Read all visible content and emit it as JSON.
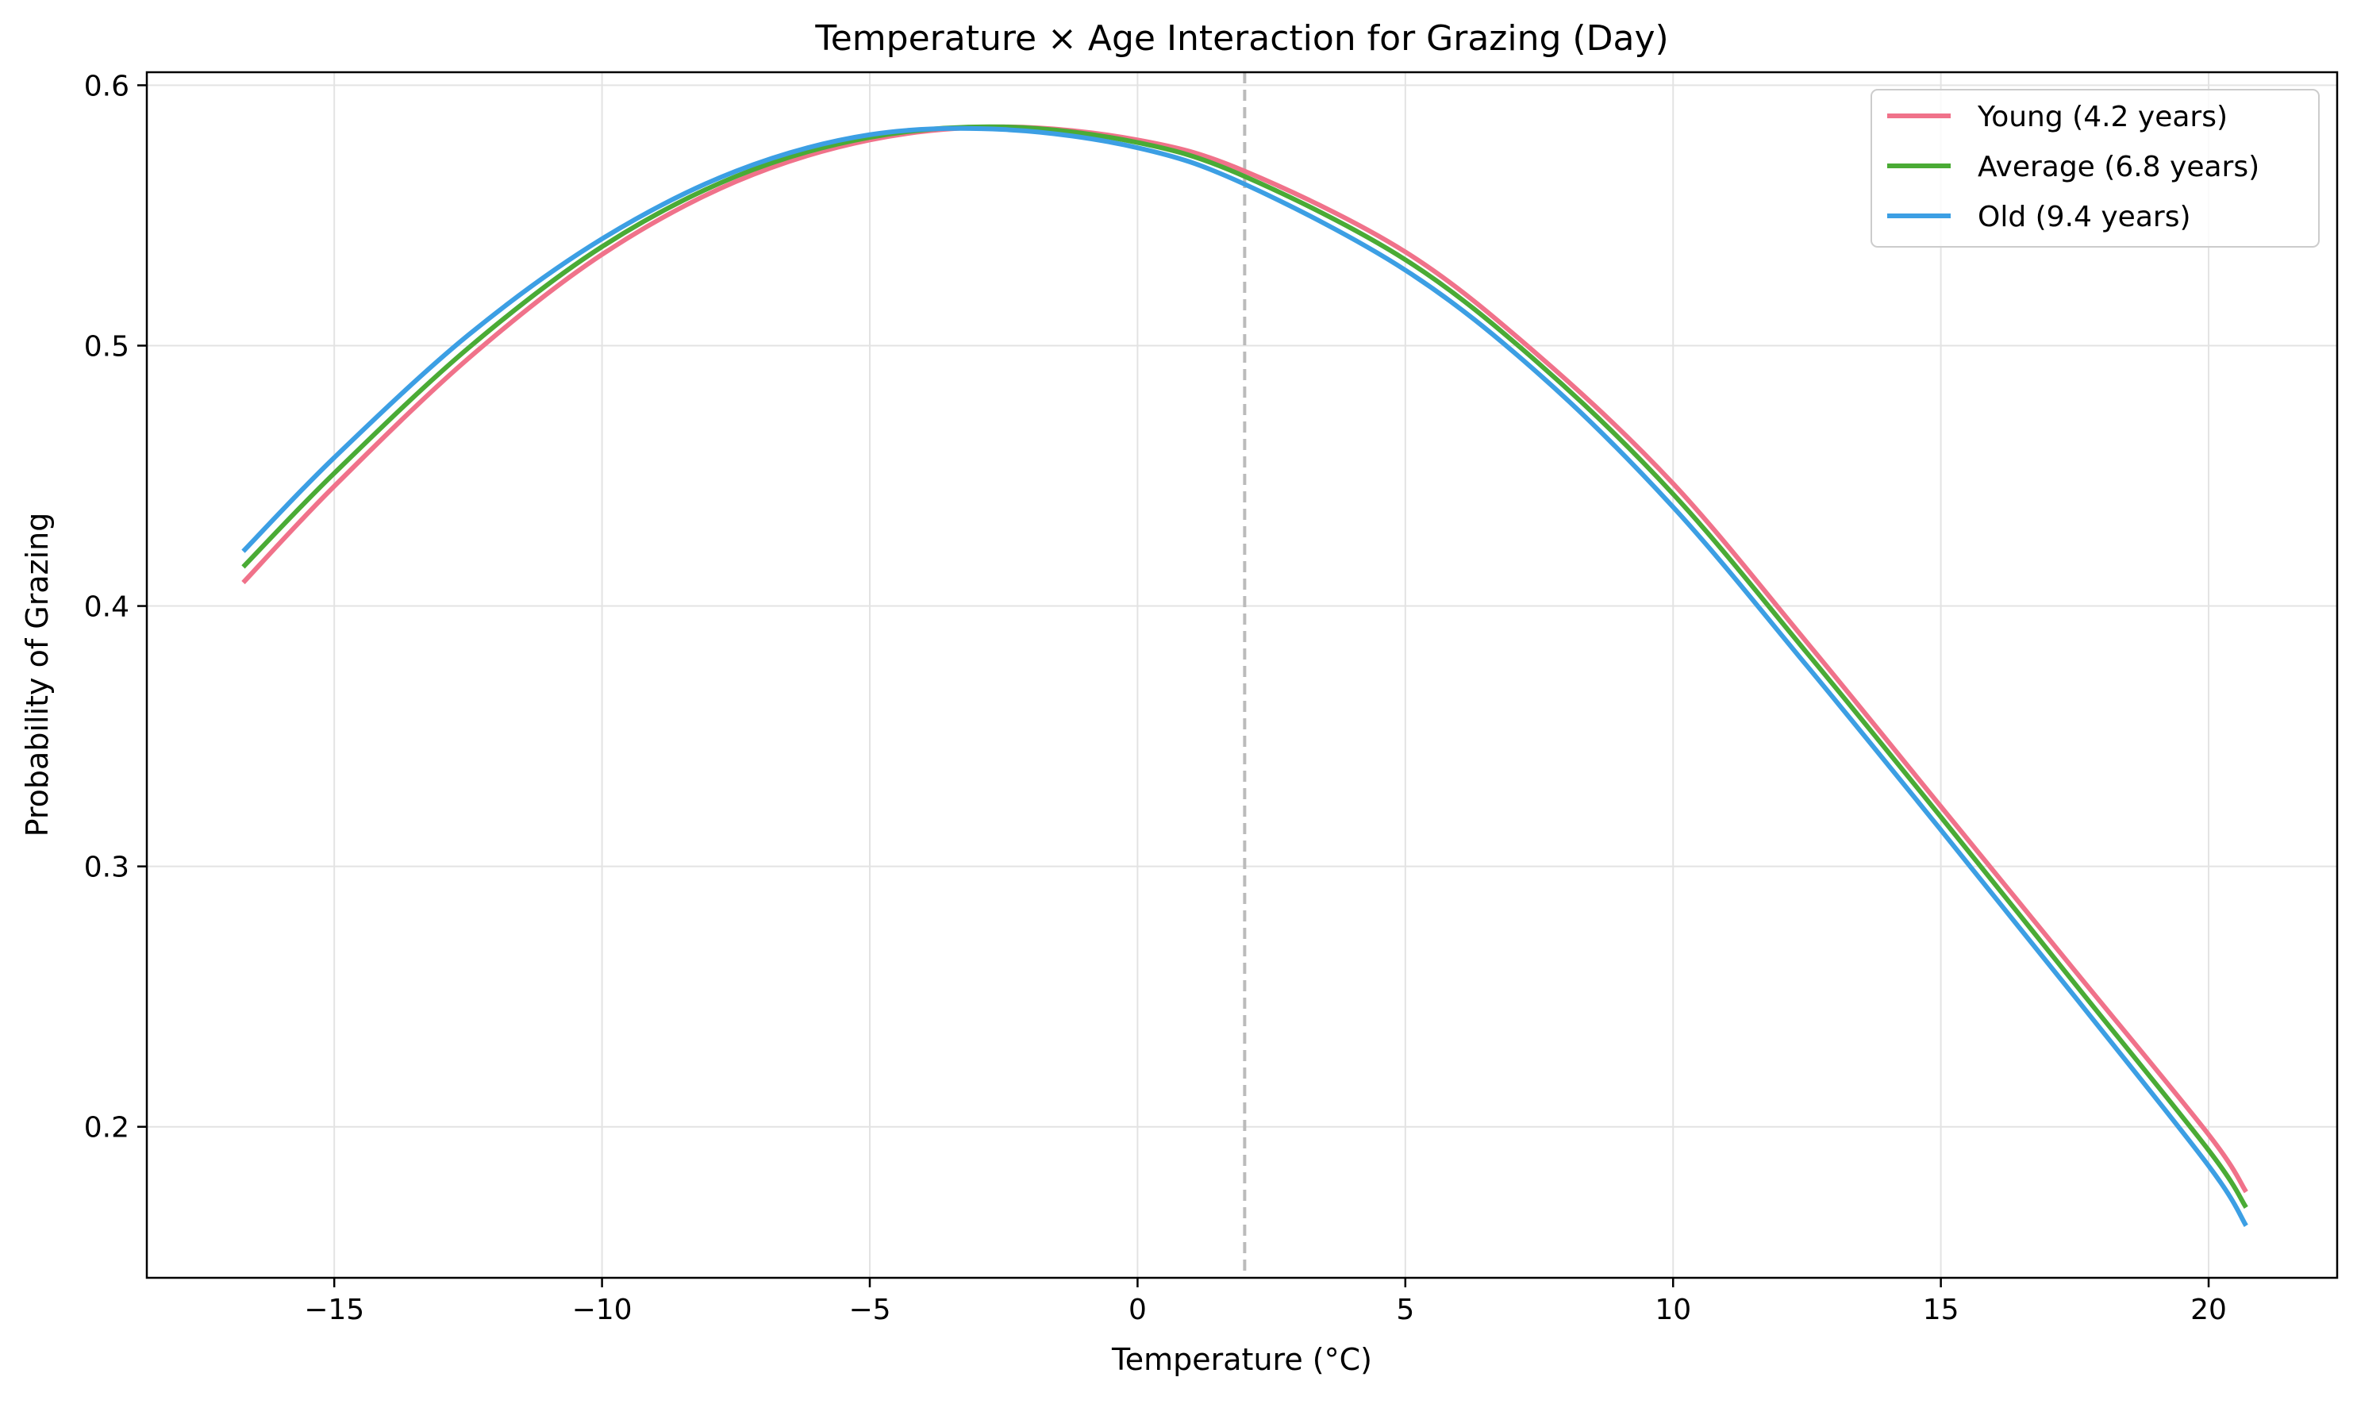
{
  "chart_data": {
    "type": "line",
    "title": "Temperature × Age Interaction for Grazing (Day)",
    "xlabel": "Temperature (°C)",
    "ylabel": "Probability of Grazing",
    "xlim": [
      -18.5,
      22.4
    ],
    "ylim": [
      0.142,
      0.605
    ],
    "xticks": [
      -15,
      -10,
      -5,
      0,
      5,
      10,
      15,
      20
    ],
    "xtick_labels": [
      "−15",
      "−10",
      "−5",
      "0",
      "5",
      "10",
      "15",
      "20"
    ],
    "yticks": [
      0.2,
      0.3,
      0.4,
      0.5,
      0.6
    ],
    "ytick_labels": [
      "0.2",
      "0.3",
      "0.4",
      "0.5",
      "0.6"
    ],
    "grid": true,
    "legend_position": "top-right",
    "reference_line": {
      "x": 2,
      "style": "dashed",
      "color": "#bbbbbb"
    },
    "x": [
      -16.7,
      -15,
      -12.5,
      -10,
      -7.5,
      -5,
      -2.5,
      0,
      2,
      5,
      7.5,
      10,
      12.5,
      15,
      17.5,
      20,
      20.7
    ],
    "series": [
      {
        "name": "Young (4.2 years)",
        "color": "#f0728a",
        "values": [
          0.409,
          0.446,
          0.495,
          0.535,
          0.563,
          0.579,
          0.584,
          0.579,
          0.567,
          0.536,
          0.496,
          0.447,
          0.386,
          0.323,
          0.26,
          0.197,
          0.175
        ]
      },
      {
        "name": "Average (6.8 years)",
        "color": "#4aab35",
        "values": [
          0.415,
          0.451,
          0.499,
          0.538,
          0.565,
          0.58,
          0.584,
          0.578,
          0.565,
          0.533,
          0.493,
          0.443,
          0.382,
          0.319,
          0.255,
          0.191,
          0.169
        ]
      },
      {
        "name": "Old (9.4 years)",
        "color": "#3c9fe4",
        "values": [
          0.421,
          0.457,
          0.504,
          0.541,
          0.567,
          0.581,
          0.583,
          0.576,
          0.562,
          0.529,
          0.489,
          0.438,
          0.377,
          0.314,
          0.25,
          0.185,
          0.162
        ]
      }
    ]
  }
}
